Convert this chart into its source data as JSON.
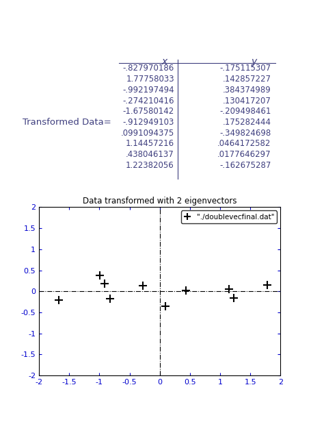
{
  "x_values": [
    -0.827970186,
    1.77758033,
    -0.992197494,
    -0.274210416,
    -1.67580142,
    -0.912949103,
    0.0991094375,
    1.14457216,
    0.438046137,
    1.22382056
  ],
  "y_values": [
    -0.175115307,
    0.142857227,
    0.384374989,
    0.130417207,
    -0.209498461,
    0.175282444,
    -0.349824698,
    0.0464172582,
    0.0177646297,
    -0.162675287
  ],
  "x_labels": [
    "-.827970186",
    "1.77758033",
    "-.992197494",
    "-.274210416",
    "-1.67580142",
    "-.912949103",
    ".0991094375",
    "1.14457216",
    ".438046137",
    "1.22382056"
  ],
  "y_labels": [
    "-.175115307",
    ".142857227",
    ".384374989",
    ".130417207",
    "-.209498461",
    ".175282444",
    "-.349824698",
    ".0464172582",
    ".0177646297",
    "-.162675287"
  ],
  "table_label": "Transformed Data=",
  "col_header_x": "x",
  "col_header_y": "y",
  "plot_title": "Data transformed with 2 eigenvectors",
  "legend_label": "\"./doublevecfinal.dat\"",
  "xlim": [
    -2,
    2
  ],
  "ylim": [
    -2,
    2
  ],
  "xticks": [
    -2,
    -1.5,
    -1,
    -0.5,
    0,
    0.5,
    1,
    1.5,
    2
  ],
  "yticks": [
    -2,
    -1.5,
    -1,
    -0.5,
    0,
    0.5,
    1,
    1.5,
    2
  ],
  "background_color": "#ffffff",
  "text_color": "#000000",
  "axis_color": "#000000",
  "marker": "+",
  "marker_color": "#000000",
  "marker_size": 8,
  "table_font_color": "#3f3f7f",
  "axis_label_color": "#0000cd"
}
